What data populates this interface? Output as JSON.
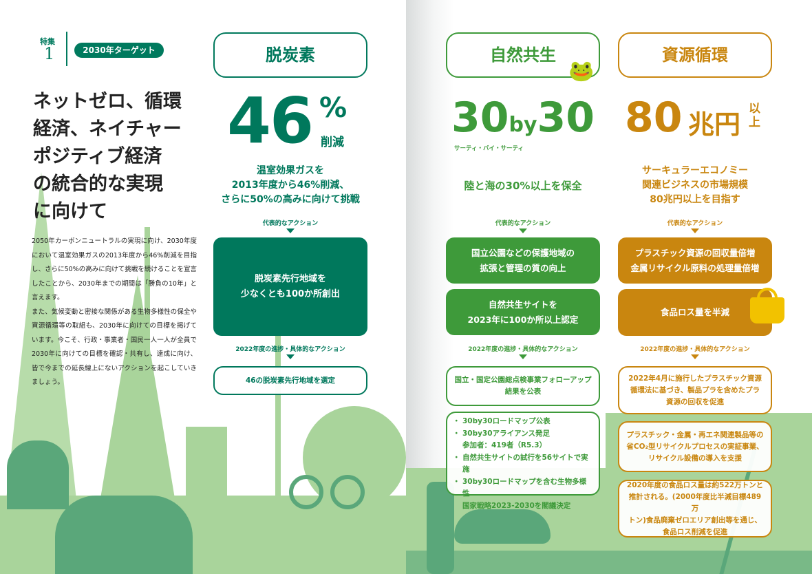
{
  "feature": {
    "label": "特集",
    "number": "1",
    "pill": "2030年ターゲット"
  },
  "headline": [
    "ネットゼロ、循環",
    "経済、ネイチャー",
    "ポジティブ経済",
    "の統合的な実現",
    "に向けて"
  ],
  "body": "2050年カーボンニュートラルの実現に向け、2030年度において温室効果ガスの2013年度から46%削減を目指し、さらに50%の高みに向けて挑戦を続けることを宣言したことから、2030年までの期間は「勝負の10年」と言えます。\nまた、気候変動と密接な関係がある生物多様性の保全や資源循環等の取組も、2030年に向けての目標を掲げています。今こそ、行政・事業者・国民一人一人が全員で2030年に向けての目標を確認・共有し、達成に向け、皆で今までの延長線上にないアクションを起こしていきましょう。",
  "colors": {
    "decarbon": "#00785c",
    "nature": "#3e9a3a",
    "resource": "#c9860f",
    "scenery": "#a9d49b",
    "scenery_dark": "#5aa77a"
  },
  "columns": [
    {
      "title": "脱炭素",
      "big": "46",
      "unit": "%",
      "unit2": "削減",
      "desc": [
        "温室効果ガスを",
        "2013年度から46%削減、",
        "さらに50%の高みに向けて挑戦"
      ],
      "actions_label": "代表的なアクション",
      "actions": [
        "脱炭素先行地域を\n少なくとも100か所創出"
      ],
      "progress_label": "2022年度の進捗・具体的なアクション",
      "progress": [
        "46の脱炭素先行地域を選定"
      ]
    },
    {
      "title": "自然共生",
      "big_a": "30",
      "big_by": "by",
      "big_b": "30",
      "reading": "サーティ・バイ・サーティ",
      "icon": "frog-icon",
      "desc": [
        "陸と海の30%以上を保全"
      ],
      "actions_label": "代表的なアクション",
      "actions": [
        "国立公園などの保護地域の\n拡張と管理の質の向上",
        "自然共生サイトを\n2023年に100か所以上認定"
      ],
      "progress_label": "2022年度の進捗・具体的なアクション",
      "progress": [
        "国立・国定公園総点検事業フォローアップ\n結果を公表"
      ],
      "progress_list": [
        "30by30ロードマップ公表",
        "30by30アライアンス発足\n参加者：419者（R5.3）",
        "自然共生サイトの試行を56サイトで実施",
        "30by30ロードマップを含む生物多様性\n国家戦略2023-2030を閣議決定"
      ]
    },
    {
      "title": "資源循環",
      "big": "80",
      "unit": "兆円",
      "unit2a": "以",
      "unit2b": "上",
      "icon": "basket-icon",
      "desc": [
        "サーキュラーエコノミー",
        "関連ビジネスの市場規模",
        "80兆円以上を目指す"
      ],
      "actions_label": "代表的なアクション",
      "actions": [
        "プラスチック資源の回収量倍増\n金属リサイクル原料の処理量倍増",
        "食品ロス量を半減"
      ],
      "progress_label": "2022年度の進捗・具体的なアクション",
      "progress": [
        "2022年4月に施行したプラスチック資源\n循環法に基づき、製品プラを含めたプラ\n資源の回収を促進",
        "プラスチック・金属・再エネ関連製品等の\n省CO₂型リサイクルプロセスの実証事業、\nリサイクル設備の導入を支援",
        "2020年度の食品ロス量は約522万トンと\n推計される。(2000年度比半減目標489万\nトン)食品廃棄ゼロエリア創出等を通じ、\n食品ロス削減を促進"
      ]
    }
  ]
}
